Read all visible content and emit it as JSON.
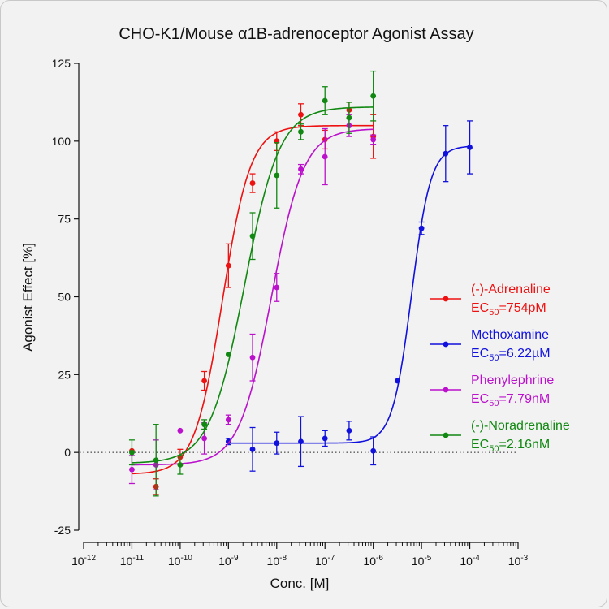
{
  "chart_data": {
    "type": "scatter",
    "title": "CHO-K1/Mouse α1B-adrenoceptor Agonist Assay",
    "xlabel": "Conc. [M]",
    "ylabel": "Agonist Effect [%]",
    "x_scale": "log",
    "x_range_exponents": [
      -12,
      -3
    ],
    "x_tick_labels": [
      {
        "base": "10",
        "exp": "-12"
      },
      {
        "base": "10",
        "exp": "-11"
      },
      {
        "base": "10",
        "exp": "-10"
      },
      {
        "base": "10",
        "exp": "-9"
      },
      {
        "base": "10",
        "exp": "-8"
      },
      {
        "base": "10",
        "exp": "-7"
      },
      {
        "base": "10",
        "exp": "-6"
      },
      {
        "base": "10",
        "exp": "-5"
      },
      {
        "base": "10",
        "exp": "-4"
      },
      {
        "base": "10",
        "exp": "-3"
      }
    ],
    "ylim": [
      -25,
      125
    ],
    "y_ticks": [
      "-25",
      "0",
      "25",
      "50",
      "75",
      "100",
      "125"
    ],
    "zero_line": "dotted",
    "grid": false,
    "legend_position": "right",
    "series": [
      {
        "name": "(-)-Adrenaline",
        "ec50_label": {
          "prefix": "EC",
          "sub": "50",
          "value": "=754pM"
        },
        "color": "#ee1111",
        "fit": {
          "bottom": -7,
          "top": 105,
          "ec50": 7.54e-10,
          "hill": 1.5
        },
        "points": [
          {
            "x": 1e-11,
            "y": 0.5,
            "err": 0
          },
          {
            "x": 3.16e-11,
            "y": -11,
            "err": 2.5
          },
          {
            "x": 1e-10,
            "y": -1.5,
            "err": 2.5
          },
          {
            "x": 3.16e-10,
            "y": 23,
            "err": 3
          },
          {
            "x": 1e-09,
            "y": 60,
            "err": 7
          },
          {
            "x": 3.16e-09,
            "y": 86.5,
            "err": 3
          },
          {
            "x": 1e-08,
            "y": 100,
            "err": 3
          },
          {
            "x": 3.16e-08,
            "y": 108.5,
            "err": 3.5
          },
          {
            "x": 1e-07,
            "y": 100.5,
            "err": 3
          },
          {
            "x": 3.16e-07,
            "y": 110,
            "err": 2.5
          },
          {
            "x": 1e-06,
            "y": 101.5,
            "err": 7
          }
        ]
      },
      {
        "name": "Methoxamine",
        "ec50_label": {
          "prefix": "EC",
          "sub": "50",
          "value": "=6.22µM"
        },
        "color": "#1111dd",
        "fit": {
          "bottom": 3,
          "top": 98.5,
          "ec50": 6.22e-06,
          "hill": 2.2,
          "x_from": 1e-09,
          "x_to": 0.0001
        },
        "points": [
          {
            "x": 1e-09,
            "y": 3.5,
            "err": 1
          },
          {
            "x": 3.16e-09,
            "y": 1,
            "err": 7
          },
          {
            "x": 1e-08,
            "y": 3,
            "err": 3.5
          },
          {
            "x": 3.16e-08,
            "y": 3.5,
            "err": 8
          },
          {
            "x": 1e-07,
            "y": 4.5,
            "err": 2.5
          },
          {
            "x": 3.16e-07,
            "y": 7,
            "err": 3
          },
          {
            "x": 1e-06,
            "y": 0.5,
            "err": 4.5
          },
          {
            "x": 3.16e-06,
            "y": 23,
            "err": 0
          },
          {
            "x": 1e-05,
            "y": 72,
            "err": 2
          },
          {
            "x": 3.16e-05,
            "y": 96,
            "err": 9
          },
          {
            "x": 0.0001,
            "y": 98,
            "err": 8.5
          }
        ]
      },
      {
        "name": "Phenylephrine",
        "ec50_label": {
          "prefix": "EC",
          "sub": "50",
          "value": "=7.79nM"
        },
        "color": "#bb11cc",
        "fit": {
          "bottom": -4,
          "top": 104,
          "ec50": 7.79e-09,
          "hill": 1.3
        },
        "points": [
          {
            "x": 1e-11,
            "y": -5.5,
            "err": 4.5
          },
          {
            "x": 3.16e-11,
            "y": -4,
            "err": 8
          },
          {
            "x": 1e-10,
            "y": 7,
            "err": 0
          },
          {
            "x": 3.16e-10,
            "y": 4.5,
            "err": 5
          },
          {
            "x": 1e-09,
            "y": 10.5,
            "err": 1.5
          },
          {
            "x": 3.16e-09,
            "y": 30.5,
            "err": 7.5
          },
          {
            "x": 1e-08,
            "y": 53,
            "err": 4.5
          },
          {
            "x": 3.16e-08,
            "y": 91,
            "err": 1.5
          },
          {
            "x": 1e-07,
            "y": 95,
            "err": 9
          },
          {
            "x": 3.16e-07,
            "y": 105,
            "err": 3.5
          },
          {
            "x": 1e-06,
            "y": 100.5,
            "err": 1.5
          }
        ]
      },
      {
        "name": "(-)-Noradrenaline",
        "ec50_label": {
          "prefix": "EC",
          "sub": "50",
          "value": "=2.16nM"
        },
        "color": "#118811",
        "fit": {
          "bottom": -3.5,
          "top": 111,
          "ec50": 2.16e-09,
          "hill": 1.2
        },
        "points": [
          {
            "x": 1e-11,
            "y": 0,
            "err": 4
          },
          {
            "x": 3.16e-11,
            "y": -2.5,
            "err": 11.5
          },
          {
            "x": 1e-10,
            "y": -4,
            "err": 3
          },
          {
            "x": 3.16e-10,
            "y": 9,
            "err": 1.5
          },
          {
            "x": 1e-09,
            "y": 31.5,
            "err": 0
          },
          {
            "x": 3.16e-09,
            "y": 69.5,
            "err": 7.5
          },
          {
            "x": 1e-08,
            "y": 89,
            "err": 10.5
          },
          {
            "x": 3.16e-08,
            "y": 103,
            "err": 2.5
          },
          {
            "x": 1e-07,
            "y": 113,
            "err": 4.5
          },
          {
            "x": 3.16e-07,
            "y": 107.5,
            "err": 5
          },
          {
            "x": 1e-06,
            "y": 114.5,
            "err": 8
          }
        ]
      }
    ]
  }
}
